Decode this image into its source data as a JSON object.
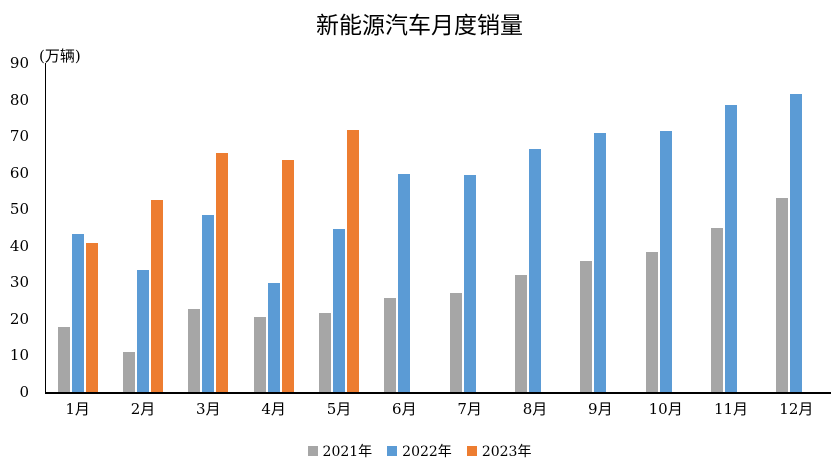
{
  "chart_data": {
    "type": "bar",
    "title": "新能源汽车月度销量",
    "ylabel": "(万辆)",
    "xlabel": "",
    "unit": "万辆",
    "categories": [
      "1月",
      "2月",
      "3月",
      "4月",
      "5月",
      "6月",
      "7月",
      "8月",
      "9月",
      "10月",
      "11月",
      "12月"
    ],
    "series": [
      {
        "name": "2021年",
        "color": "#A6A6A6",
        "values": [
          17.9,
          11.0,
          22.6,
          20.6,
          21.7,
          25.6,
          27.1,
          32.1,
          35.7,
          38.3,
          45.0,
          53.1
        ]
      },
      {
        "name": "2022年",
        "color": "#5B9BD5",
        "values": [
          43.1,
          33.4,
          48.4,
          29.9,
          44.7,
          59.6,
          59.3,
          66.6,
          70.8,
          71.4,
          78.6,
          81.4
        ]
      },
      {
        "name": "2023年",
        "color": "#ED7D31",
        "values": [
          40.8,
          52.5,
          65.3,
          63.6,
          71.7,
          null,
          null,
          null,
          null,
          null,
          null,
          null
        ]
      }
    ],
    "ylim": [
      0,
      90
    ],
    "ytick_step": 10,
    "grid": false,
    "legend_position": "bottom",
    "axis_color": "#000000",
    "text_color": "#000000"
  }
}
